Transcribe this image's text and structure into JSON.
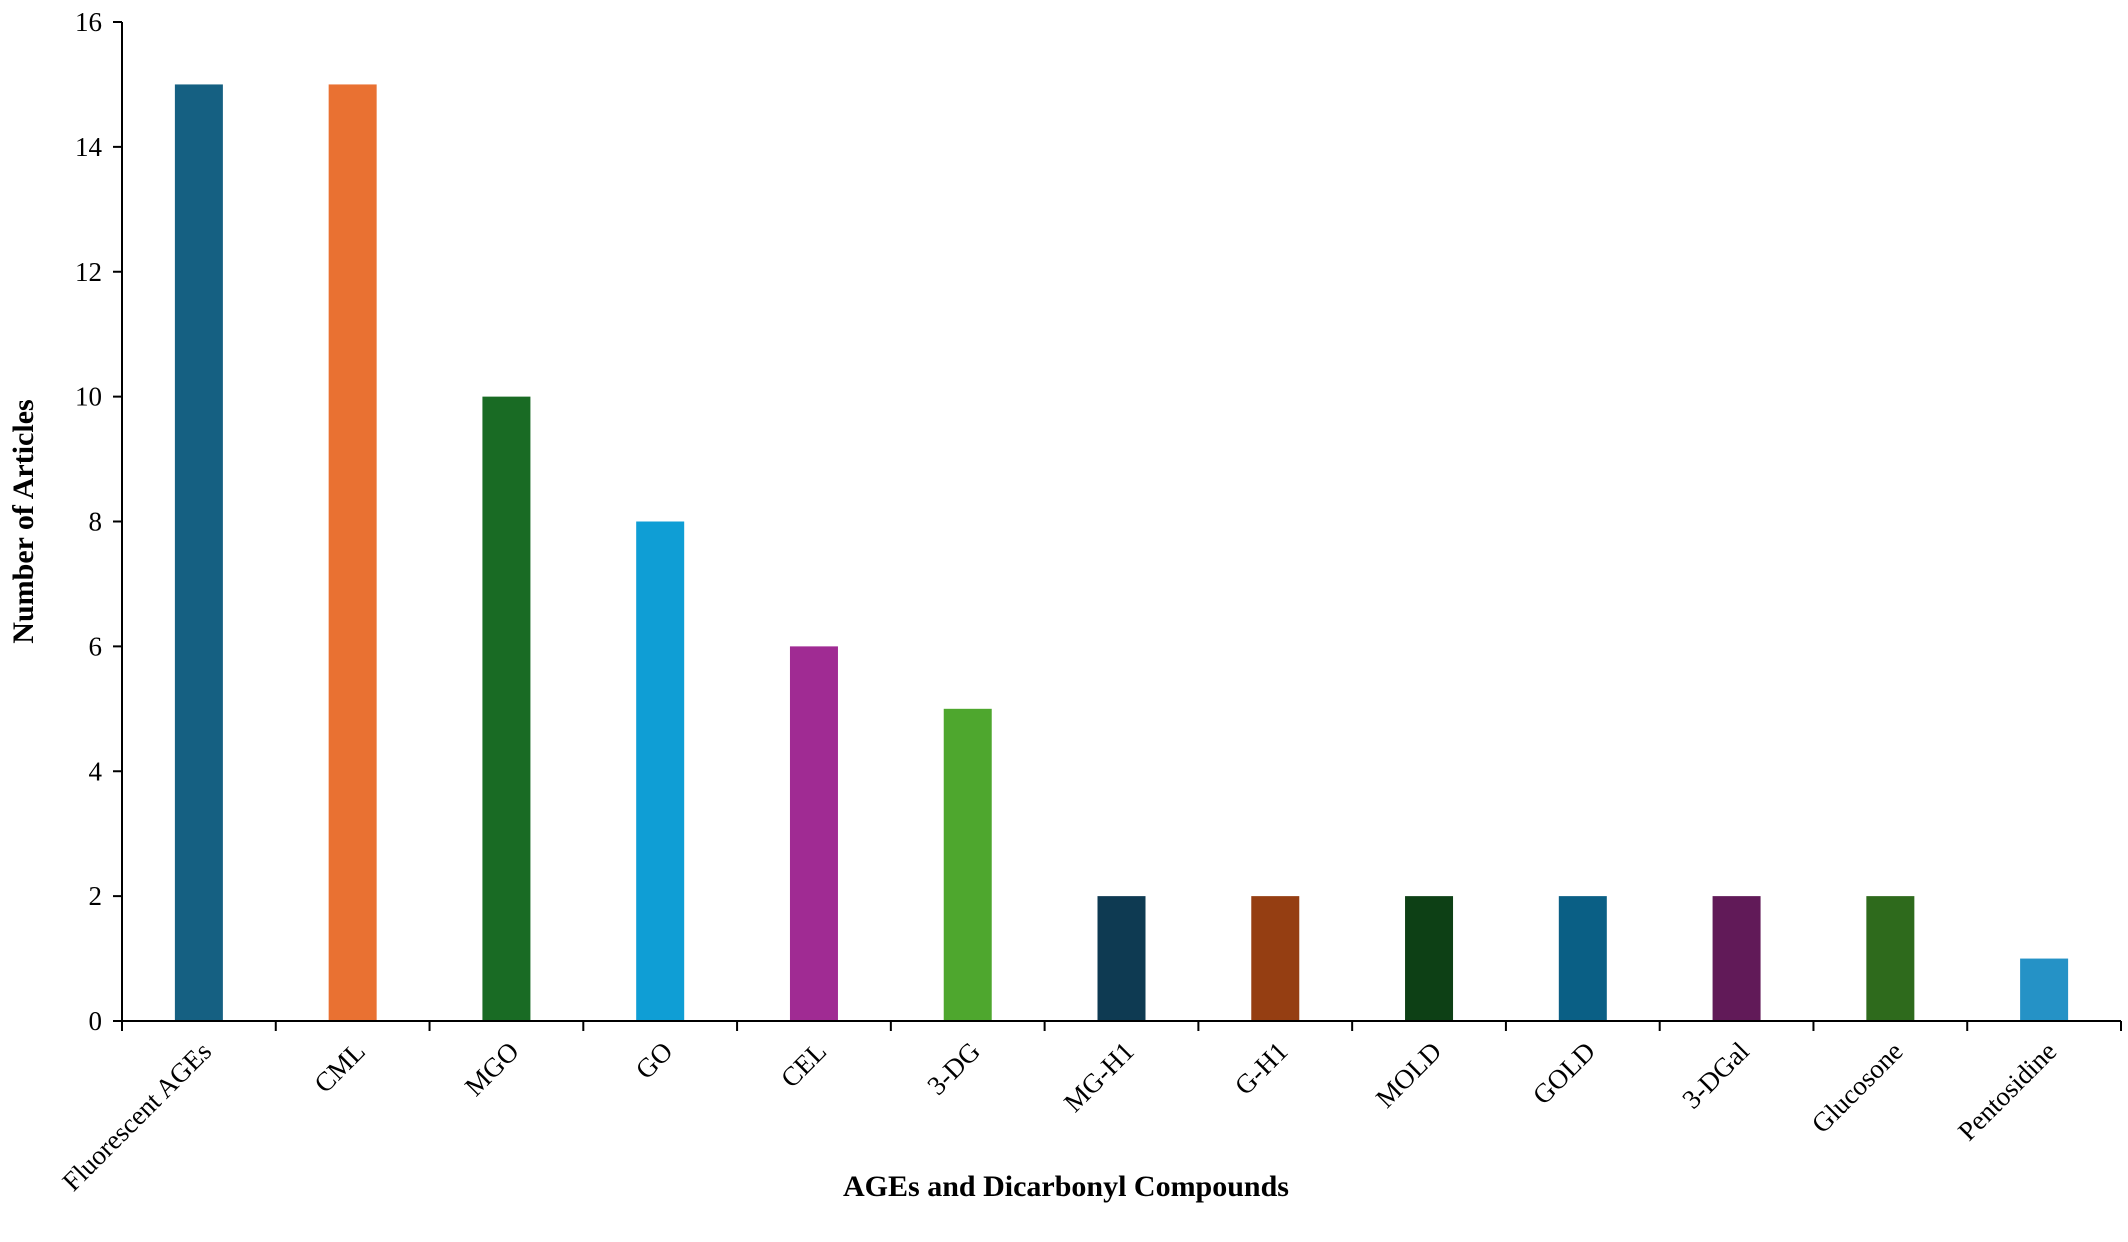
{
  "chart_data": {
    "type": "bar",
    "categories": [
      "Fluorescent AGEs",
      "CML",
      "MGO",
      "GO",
      "CEL",
      "3-DG",
      "MG-H1",
      "G-H1",
      "MOLD",
      "GOLD",
      "3-DGal",
      "Glucosone",
      "Pentosidine"
    ],
    "values": [
      15,
      15,
      10,
      8,
      6,
      5,
      2,
      2,
      2,
      2,
      2,
      2,
      1
    ],
    "colors": [
      "#156082",
      "#e97132",
      "#196b24",
      "#0f9ed5",
      "#a02b93",
      "#4ea72e",
      "#0e3a52",
      "#953e12",
      "#0d4015",
      "#0a5f85",
      "#611a58",
      "#2e6a1c",
      "#2592c6"
    ],
    "title": "",
    "xlabel": "AGEs and Dicarbonyl Compounds",
    "ylabel": "Number of Articles",
    "ylim": [
      0,
      16
    ],
    "yticks": [
      0,
      2,
      4,
      6,
      8,
      10,
      12,
      14,
      16
    ],
    "grid": false,
    "legend": "none"
  }
}
